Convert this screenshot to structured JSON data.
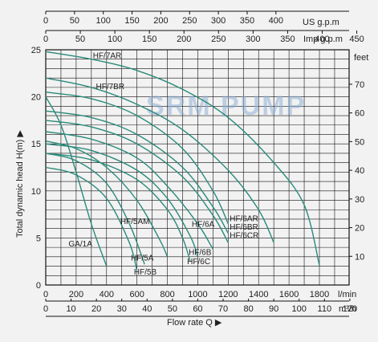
{
  "chart_data": {
    "type": "line",
    "watermark": "SRM PUMP",
    "ylabel": "Total dynamic head H(m) ▶",
    "xlabel": "Flow  rate Q ▶",
    "y_left": {
      "min": 0,
      "max": 25,
      "ticks": [
        0,
        5,
        10,
        15,
        20,
        25
      ]
    },
    "y_right": {
      "unit": "feet",
      "ticks": [
        10,
        20,
        30,
        40,
        50,
        60,
        70
      ]
    },
    "x_lmin": {
      "unit": "l/min",
      "min": 0,
      "max": 2000,
      "ticks": [
        0,
        200,
        400,
        600,
        800,
        1000,
        1200,
        1400,
        1600,
        1800
      ]
    },
    "x_m3h": {
      "unit": "m³/h",
      "ticks": [
        0,
        10,
        20,
        30,
        40,
        50,
        60,
        70,
        80,
        90,
        100,
        110,
        120
      ]
    },
    "x_usgpm": {
      "unit": "US g.p.m",
      "ticks": [
        0,
        50,
        100,
        150,
        200,
        250,
        300,
        350,
        400
      ]
    },
    "x_impgpm": {
      "unit": "Imp g.p.m",
      "ticks": [
        0,
        50,
        100,
        150,
        200,
        250,
        300,
        350,
        400,
        450
      ]
    },
    "curve_color": "#2a8a7a",
    "series": [
      {
        "name": "HF/7AR",
        "label_pos": [
          310,
          24.1
        ],
        "points": [
          [
            0,
            24.8
          ],
          [
            300,
            24.0
          ],
          [
            600,
            22.8
          ],
          [
            900,
            20.8
          ],
          [
            1200,
            17.8
          ],
          [
            1500,
            13.0
          ],
          [
            1700,
            8.5
          ],
          [
            1800,
            2.1
          ]
        ]
      },
      {
        "name": "HF/7BR",
        "label_pos": [
          330,
          20.8
        ],
        "points": [
          [
            0,
            22.0
          ],
          [
            300,
            21.0
          ],
          [
            600,
            19.2
          ],
          [
            900,
            16.5
          ],
          [
            1200,
            12.2
          ],
          [
            1400,
            8.0
          ],
          [
            1500,
            4.5
          ]
        ]
      },
      {
        "name": "HF/6AR",
        "label_pos": [
          1210,
          6.8
        ],
        "points": [
          [
            0,
            20.5
          ],
          [
            300,
            19.8
          ],
          [
            600,
            18.0
          ],
          [
            900,
            14.5
          ],
          [
            1100,
            10.0
          ],
          [
            1200,
            6.5
          ]
        ]
      },
      {
        "name": "HF/6BR",
        "label_pos": [
          1210,
          5.9
        ],
        "points": [
          [
            0,
            18.5
          ],
          [
            300,
            17.8
          ],
          [
            600,
            16.0
          ],
          [
            900,
            12.5
          ],
          [
            1100,
            8.3
          ],
          [
            1200,
            5.5
          ]
        ]
      },
      {
        "name": "HF/6CR",
        "label_pos": [
          1210,
          5.0
        ],
        "points": [
          [
            0,
            17.5
          ],
          [
            300,
            16.8
          ],
          [
            600,
            15.0
          ],
          [
            900,
            11.5
          ],
          [
            1100,
            7.4
          ],
          [
            1200,
            4.5
          ]
        ]
      },
      {
        "name": "HF/6A",
        "label_pos": [
          960,
          6.2
        ],
        "points": [
          [
            0,
            16.3
          ],
          [
            300,
            15.5
          ],
          [
            600,
            13.5
          ],
          [
            800,
            10.5
          ],
          [
            1000,
            6.5
          ],
          [
            1100,
            3.8
          ]
        ]
      },
      {
        "name": "HF/6B",
        "label_pos": [
          940,
          3.2
        ],
        "points": [
          [
            0,
            15.0
          ],
          [
            300,
            14.3
          ],
          [
            600,
            12.2
          ],
          [
            800,
            9.2
          ],
          [
            950,
            5.2
          ],
          [
            1000,
            3.0
          ]
        ]
      },
      {
        "name": "HF/6C",
        "label_pos": [
          930,
          2.2
        ],
        "points": [
          [
            0,
            14.0
          ],
          [
            300,
            13.3
          ],
          [
            600,
            11.2
          ],
          [
            800,
            8.0
          ],
          [
            900,
            5.0
          ],
          [
            950,
            2.5
          ]
        ]
      },
      {
        "name": "HF/5AM",
        "label_pos": [
          490,
          6.5
        ],
        "points": [
          [
            0,
            15.3
          ],
          [
            200,
            14.5
          ],
          [
            400,
            12.5
          ],
          [
            600,
            9.0
          ],
          [
            750,
            4.8
          ],
          [
            800,
            3.0
          ]
        ]
      },
      {
        "name": "HF/5A",
        "label_pos": [
          560,
          2.6
        ],
        "points": [
          [
            0,
            14.0
          ],
          [
            200,
            13.2
          ],
          [
            400,
            10.8
          ],
          [
            550,
            6.5
          ],
          [
            650,
            2.2
          ]
        ]
      },
      {
        "name": "HF/5B",
        "label_pos": [
          580,
          1.1
        ],
        "points": [
          [
            0,
            12.5
          ],
          [
            200,
            11.7
          ],
          [
            400,
            9.2
          ],
          [
            550,
            4.5
          ],
          [
            600,
            1.5
          ]
        ]
      },
      {
        "name": "GA/1A",
        "label_pos": [
          150,
          4.1
        ],
        "points": [
          [
            0,
            20.0
          ],
          [
            100,
            17.0
          ],
          [
            200,
            12.0
          ],
          [
            300,
            6.5
          ],
          [
            400,
            2.0
          ]
        ]
      }
    ]
  }
}
